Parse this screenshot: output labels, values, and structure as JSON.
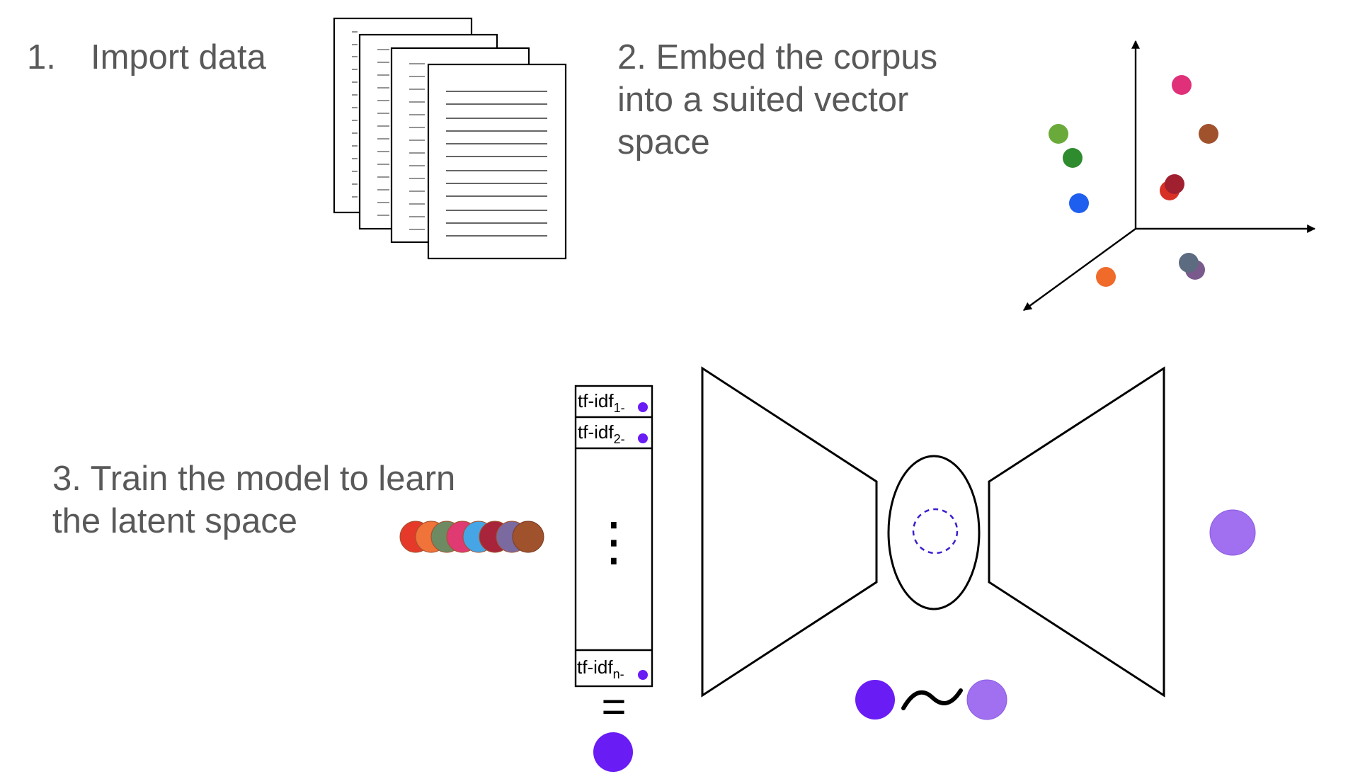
{
  "steps": {
    "step1_number": "1.",
    "step1_label": "Import data",
    "step2_text": "2. Embed the corpus\ninto a suited vector\nspace",
    "step3_text": "3. Train the model to learn\nthe latent space"
  },
  "vector": {
    "cell1_main": "tf-idf",
    "cell1_sub": "1-",
    "cell2_main": "tf-idf",
    "cell2_sub": "2-",
    "celln_main": "tf-idf",
    "celln_sub": "n-",
    "ellipsis": "⋮",
    "equals": "="
  },
  "relation": {
    "tilde": "∼"
  },
  "colors": {
    "text": "#595959",
    "stroke": "#000000",
    "latent_dark": "#6a1cf5",
    "latent_light": "#a070f0",
    "dashed_circle": "#3a1fd0",
    "scatter_points": [
      "#e0307a",
      "#a0522d",
      "#6aaa3a",
      "#2e8b2e",
      "#d93025",
      "#a02030",
      "#1f5fef",
      "#f06a2a",
      "#5c6b80",
      "#7a5a8c"
    ],
    "document_stack": [
      "#e53a2a",
      "#f0733a",
      "#6d8a62",
      "#e03a72",
      "#45a5e5",
      "#a8243a",
      "#7a6aa0",
      "#a0522d"
    ]
  },
  "icons": {
    "documents": "document-stack-icon",
    "axes": "3d-axes-icon",
    "model": "autoencoder-icon"
  }
}
